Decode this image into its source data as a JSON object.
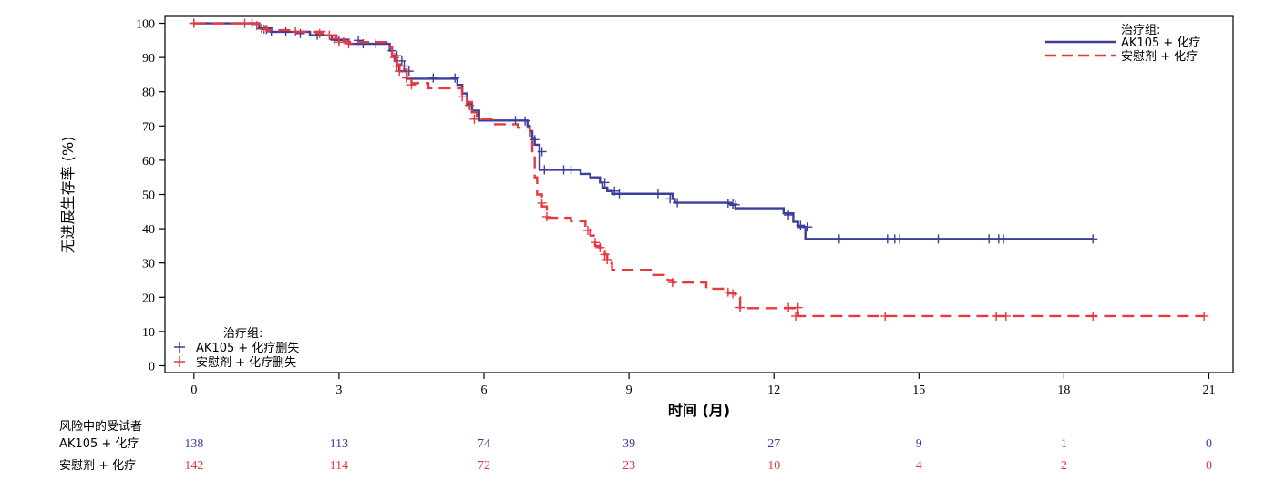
{
  "chart_data": {
    "type": "line",
    "xlabel": "时间 (月)",
    "ylabel": "无进展生存率 (%)",
    "xlim": [
      -0.6,
      21.5
    ],
    "ylim": [
      -2,
      102
    ],
    "xticks": [
      0,
      3,
      6,
      9,
      12,
      15,
      18,
      21
    ],
    "yticks": [
      0,
      10,
      20,
      30,
      40,
      50,
      60,
      70,
      80,
      90,
      100
    ],
    "legend_title": "治疗组:",
    "legend_position": "top-right",
    "censor_legend_title": "治疗组:",
    "censor_legend_position": "bottom-left",
    "series": [
      {
        "name": "AK105 + 化疗",
        "censor_name": "AK105 + 化疗删失",
        "color": "#3a3f9a",
        "dash": "solid",
        "steps": [
          [
            0,
            100
          ],
          [
            1.35,
            98.5
          ],
          [
            1.6,
            97.5
          ],
          [
            2.4,
            96.5
          ],
          [
            2.85,
            95.2
          ],
          [
            3.2,
            94
          ],
          [
            4.05,
            92
          ],
          [
            4.1,
            90.5
          ],
          [
            4.15,
            89
          ],
          [
            4.2,
            87.5
          ],
          [
            4.25,
            86
          ],
          [
            4.4,
            83.8
          ],
          [
            5.45,
            82
          ],
          [
            5.55,
            79.5
          ],
          [
            5.65,
            76.5
          ],
          [
            5.75,
            74.5
          ],
          [
            5.9,
            71.6
          ],
          [
            6.9,
            70
          ],
          [
            6.95,
            68.5
          ],
          [
            7.0,
            66.5
          ],
          [
            7.05,
            64.5
          ],
          [
            7.15,
            57.2
          ],
          [
            8.0,
            56
          ],
          [
            8.2,
            55
          ],
          [
            8.4,
            53.5
          ],
          [
            8.45,
            52
          ],
          [
            8.55,
            51
          ],
          [
            8.65,
            50.2
          ],
          [
            9.9,
            48.7
          ],
          [
            9.95,
            47.6
          ],
          [
            11.1,
            47
          ],
          [
            11.2,
            46
          ],
          [
            12.2,
            44.5
          ],
          [
            12.4,
            42
          ],
          [
            12.5,
            40.5
          ],
          [
            12.65,
            37
          ],
          [
            18.6,
            37
          ]
        ],
        "censors": [
          [
            0,
            100
          ],
          [
            1.2,
            100
          ],
          [
            1.4,
            98.5
          ],
          [
            1.5,
            98.2
          ],
          [
            1.6,
            97.5
          ],
          [
            1.9,
            97.5
          ],
          [
            2.2,
            97
          ],
          [
            2.55,
            96.5
          ],
          [
            2.9,
            95.2
          ],
          [
            3.0,
            95
          ],
          [
            3.4,
            95
          ],
          [
            3.5,
            94
          ],
          [
            3.75,
            94
          ],
          [
            4.1,
            92
          ],
          [
            4.2,
            90.5
          ],
          [
            4.3,
            89
          ],
          [
            4.35,
            87.5
          ],
          [
            4.45,
            86
          ],
          [
            4.95,
            84
          ],
          [
            5.4,
            84
          ],
          [
            5.7,
            76
          ],
          [
            6.65,
            71.6
          ],
          [
            6.85,
            71.5
          ],
          [
            7.05,
            66
          ],
          [
            7.2,
            62.5
          ],
          [
            7.25,
            57.2
          ],
          [
            7.65,
            57.2
          ],
          [
            7.8,
            57.2
          ],
          [
            8.5,
            53.5
          ],
          [
            8.7,
            51
          ],
          [
            8.8,
            50.2
          ],
          [
            9.6,
            50.2
          ],
          [
            9.85,
            48.7
          ],
          [
            10.0,
            47.6
          ],
          [
            11.05,
            47.5
          ],
          [
            11.15,
            47.2
          ],
          [
            11.2,
            47
          ],
          [
            12.3,
            44
          ],
          [
            12.55,
            41
          ],
          [
            12.7,
            40.5
          ],
          [
            13.35,
            37
          ],
          [
            14.35,
            37
          ],
          [
            14.5,
            37
          ],
          [
            14.6,
            37
          ],
          [
            15.4,
            37
          ],
          [
            16.45,
            37
          ],
          [
            16.65,
            37
          ],
          [
            16.75,
            37
          ],
          [
            18.6,
            37
          ]
        ]
      },
      {
        "name": "安慰剂 + 化疗",
        "censor_name": "安慰剂 + 化疗删失",
        "color": "#e8373d",
        "dash": "dashed",
        "steps": [
          [
            0,
            100
          ],
          [
            1.4,
            99
          ],
          [
            1.5,
            98
          ],
          [
            2.0,
            97.5
          ],
          [
            2.7,
            96.5
          ],
          [
            2.95,
            95.5
          ],
          [
            3.1,
            94.5
          ],
          [
            4.05,
            93
          ],
          [
            4.1,
            90.5
          ],
          [
            4.2,
            88
          ],
          [
            4.3,
            86.5
          ],
          [
            4.4,
            84
          ],
          [
            4.5,
            82.5
          ],
          [
            4.85,
            81
          ],
          [
            5.55,
            79
          ],
          [
            5.65,
            77
          ],
          [
            5.75,
            74
          ],
          [
            5.85,
            72
          ],
          [
            6.2,
            70.5
          ],
          [
            6.7,
            69.5
          ],
          [
            6.95,
            66
          ],
          [
            7.0,
            62
          ],
          [
            7.05,
            55
          ],
          [
            7.1,
            50
          ],
          [
            7.2,
            46.5
          ],
          [
            7.3,
            43.2
          ],
          [
            7.8,
            42.2
          ],
          [
            8.1,
            40.5
          ],
          [
            8.2,
            38
          ],
          [
            8.3,
            35
          ],
          [
            8.4,
            34
          ],
          [
            8.5,
            32.5
          ],
          [
            8.55,
            30
          ],
          [
            8.65,
            28
          ],
          [
            9.5,
            26.5
          ],
          [
            9.8,
            25
          ],
          [
            9.9,
            24.3
          ],
          [
            10.6,
            22.5
          ],
          [
            11.05,
            21.2
          ],
          [
            11.2,
            20
          ],
          [
            11.3,
            16.8
          ],
          [
            12.5,
            14.5
          ],
          [
            20.9,
            14.5
          ]
        ],
        "censors": [
          [
            0,
            100
          ],
          [
            1.05,
            100
          ],
          [
            1.3,
            99.3
          ],
          [
            1.45,
            98.3
          ],
          [
            2.1,
            97.5
          ],
          [
            2.6,
            97
          ],
          [
            2.8,
            96.5
          ],
          [
            2.9,
            95.5
          ],
          [
            3.0,
            94.5
          ],
          [
            3.2,
            94
          ],
          [
            4.15,
            90
          ],
          [
            4.2,
            87.5
          ],
          [
            4.25,
            86
          ],
          [
            4.4,
            84
          ],
          [
            4.5,
            82
          ],
          [
            5.55,
            78.5
          ],
          [
            5.7,
            76
          ],
          [
            5.8,
            72
          ],
          [
            7.2,
            47.5
          ],
          [
            7.3,
            43.5
          ],
          [
            8.15,
            39.5
          ],
          [
            8.3,
            36
          ],
          [
            8.4,
            34.5
          ],
          [
            8.5,
            32.5
          ],
          [
            8.55,
            31
          ],
          [
            9.9,
            24.3
          ],
          [
            11.05,
            21.5
          ],
          [
            11.15,
            21
          ],
          [
            11.3,
            17
          ],
          [
            12.3,
            17
          ],
          [
            12.5,
            17
          ],
          [
            12.45,
            14.5
          ],
          [
            14.3,
            14.5
          ],
          [
            16.6,
            14.5
          ],
          [
            16.8,
            14.5
          ],
          [
            18.6,
            14.5
          ],
          [
            20.9,
            14.5
          ]
        ]
      }
    ],
    "risk_table": {
      "title": "风险中的受试者",
      "times": [
        0,
        3,
        6,
        9,
        12,
        15,
        18,
        21
      ],
      "rows": [
        {
          "label": "AK105 + 化疗",
          "color": "#3a3f9a",
          "values": [
            138,
            113,
            74,
            39,
            27,
            9,
            1,
            0
          ]
        },
        {
          "label": "安慰剂 + 化疗",
          "color": "#e8373d",
          "values": [
            142,
            114,
            72,
            23,
            10,
            4,
            2,
            0
          ]
        }
      ]
    }
  }
}
